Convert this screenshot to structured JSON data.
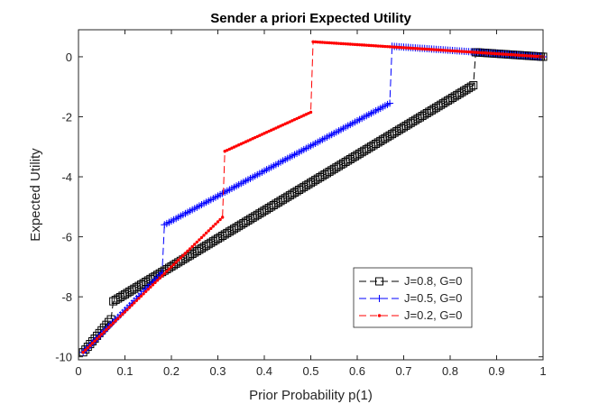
{
  "chart_data": {
    "type": "line",
    "title": "Sender a priori Expected Utility",
    "xlabel": "Prior Probability p(1)",
    "ylabel": "Expected Utility",
    "xlim": [
      0,
      1
    ],
    "ylim": [
      -10.1,
      0.9
    ],
    "xticks": [
      0,
      0.1,
      0.2,
      0.3,
      0.4,
      0.5,
      0.6,
      0.7,
      0.8,
      0.9,
      1
    ],
    "xtick_labels": [
      "0",
      "0.1",
      "0.2",
      "0.3",
      "0.4",
      "0.5",
      "0.6",
      "0.7",
      "0.8",
      "0.9",
      "1"
    ],
    "yticks": [
      -10,
      -8,
      -6,
      -4,
      -2,
      0
    ],
    "ytick_labels": [
      "-10",
      "-8",
      "-6",
      "-4",
      "-2",
      "0"
    ],
    "grid": false,
    "legend_position": "bottom-right",
    "series": [
      {
        "name": "J=0.8, G=0",
        "color": "#000000",
        "marker": "square",
        "line_style": "dashed",
        "segments": [
          {
            "x0": 0.01,
            "x1": 0.07,
            "y0": -9.85,
            "y1": -8.75
          },
          {
            "x0": 0.075,
            "x1": 0.85,
            "y0": -8.15,
            "y1": -0.95
          },
          {
            "x0": 0.855,
            "x1": 1.0,
            "y0": 0.15,
            "y1": 0.0
          }
        ],
        "jumps": [
          {
            "x": 0.07,
            "from": -8.75,
            "to": -8.15
          },
          {
            "x": 0.85,
            "from": -0.95,
            "to": 0.15
          }
        ]
      },
      {
        "name": "J=0.5, G=0",
        "color": "#0000ff",
        "marker": "plus",
        "line_style": "dashed",
        "segments": [
          {
            "x0": 0.01,
            "x1": 0.18,
            "y0": -9.85,
            "y1": -7.2
          },
          {
            "x0": 0.185,
            "x1": 0.67,
            "y0": -5.6,
            "y1": -1.55
          },
          {
            "x0": 0.675,
            "x1": 1.0,
            "y0": 0.35,
            "y1": 0.0
          }
        ],
        "jumps": [
          {
            "x": 0.18,
            "from": -7.2,
            "to": -5.6
          },
          {
            "x": 0.67,
            "from": -1.55,
            "to": 0.35
          }
        ]
      },
      {
        "name": "J=0.2, G=0",
        "color": "#ff0000",
        "marker": "point",
        "line_style": "dashed",
        "segments": [
          {
            "x0": 0.01,
            "x1": 0.31,
            "y0": -9.85,
            "y1": -5.35
          },
          {
            "x0": 0.315,
            "x1": 0.5,
            "y0": -3.15,
            "y1": -1.85
          },
          {
            "x0": 0.505,
            "x1": 1.0,
            "y0": 0.5,
            "y1": 0.0
          }
        ],
        "jumps": [
          {
            "x": 0.31,
            "from": -5.35,
            "to": -3.15
          },
          {
            "x": 0.5,
            "from": -1.85,
            "to": 0.5
          }
        ]
      }
    ]
  }
}
